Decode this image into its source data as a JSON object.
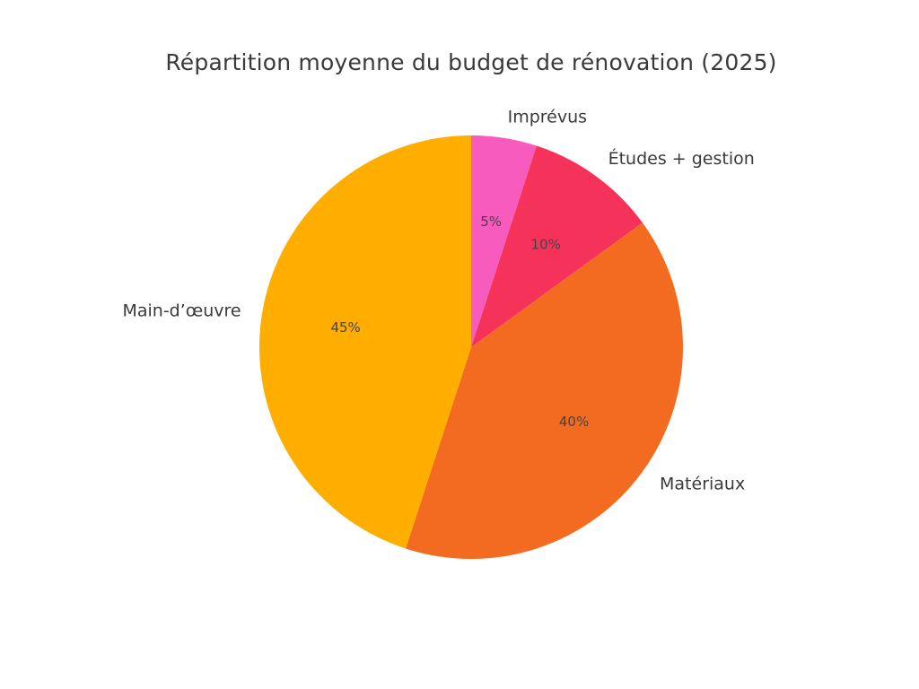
{
  "chart_data": {
    "type": "pie",
    "title": "Répartition moyenne du budget de rénovation (2025)",
    "start_angle_deg": 90,
    "direction": "clockwise",
    "categories": [
      "Imprévus",
      "Études + gestion",
      "Matériaux",
      "Main-d’œuvre"
    ],
    "values": [
      5,
      10,
      40,
      45
    ],
    "value_labels": [
      "5%",
      "10%",
      "40%",
      "45%"
    ],
    "colors": [
      "#F75BBE",
      "#F5335A",
      "#F26B21",
      "#FFAE00"
    ],
    "unit": "%",
    "legend": "none (labels placed outside slices)"
  }
}
